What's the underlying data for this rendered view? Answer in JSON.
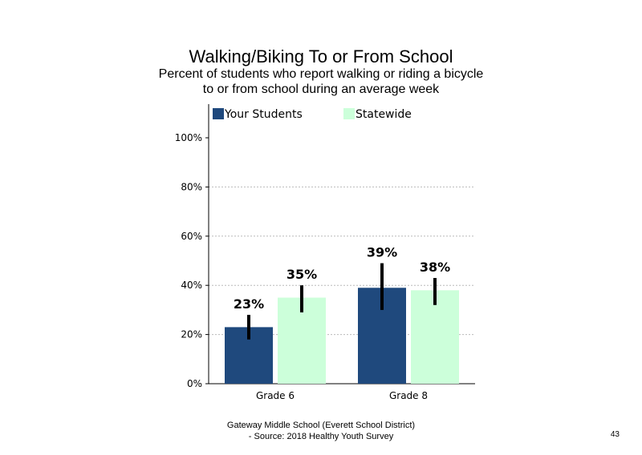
{
  "title": "Walking/Biking  To or From School",
  "subtitle_line1": "Percent of students  who report walking  or riding a bicycle",
  "subtitle_line2": "to or from school during an average week",
  "footer_line1": "Gateway Middle  School  (Everett  School District)",
  "footer_line2": "- Source: 2018 Healthy  Youth Survey",
  "page_number": "43",
  "chart_data": {
    "type": "bar",
    "categories": [
      "Grade 6",
      "Grade 8"
    ],
    "series": [
      {
        "name": "Your Students",
        "color": "#1f497d",
        "values": [
          23,
          39
        ],
        "labels": [
          "23%",
          "39%"
        ],
        "error_low": [
          18,
          30
        ],
        "error_high": [
          28,
          49
        ]
      },
      {
        "name": "Statewide",
        "color": "#ccffda",
        "values": [
          35,
          38
        ],
        "labels": [
          "35%",
          "38%"
        ],
        "error_low": [
          29,
          32
        ],
        "error_high": [
          40,
          43
        ]
      }
    ],
    "ylim": [
      0,
      100
    ],
    "yticks": [
      0,
      20,
      40,
      60,
      80,
      100
    ],
    "ytick_labels": [
      "0%",
      "20%",
      "40%",
      "60%",
      "80%",
      "100%"
    ],
    "gridlines": [
      20,
      40,
      60,
      80
    ],
    "legend_position": "top"
  }
}
